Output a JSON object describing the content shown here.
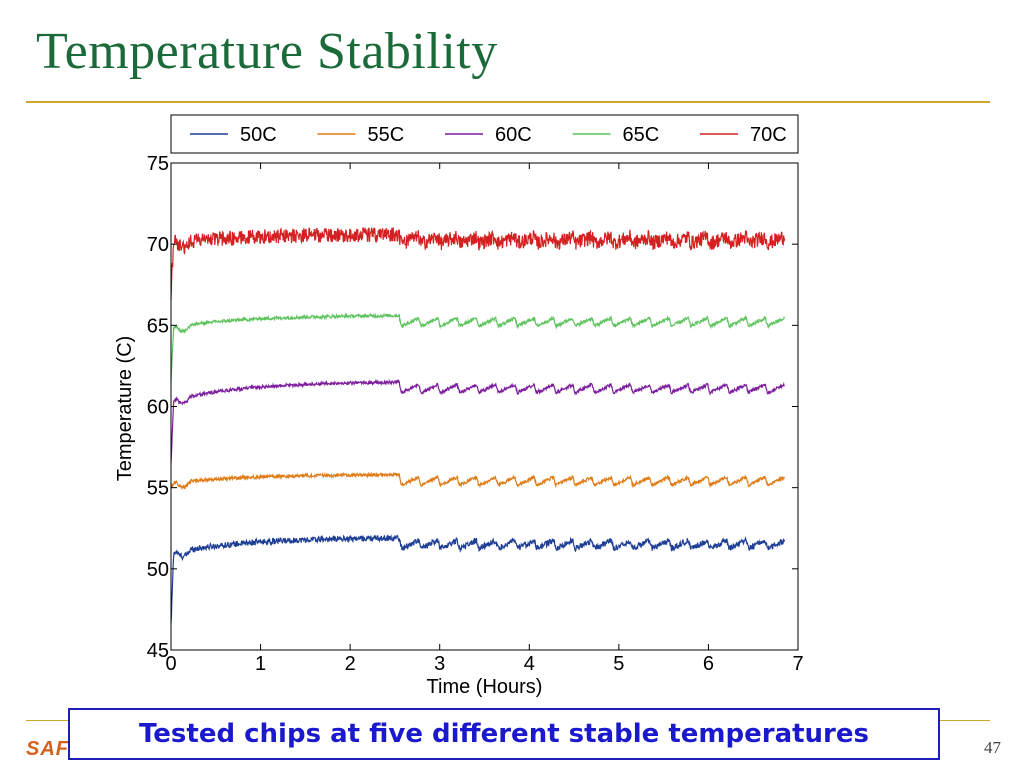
{
  "slide": {
    "title": "Temperature Stability",
    "callout": "Tested chips at five different stable temperatures",
    "page_number": "47",
    "logo_text": "SAF"
  },
  "colors": {
    "title": "#1b6b3a",
    "rule": "#cfa62c",
    "callout_border": "#1f1fb8",
    "callout_text": "#1a1acc",
    "logo": "#d6601f"
  },
  "chart_data": {
    "type": "line",
    "title": "",
    "xlabel": "Time (Hours)",
    "ylabel": "Temperature (C)",
    "xlim": [
      0,
      7
    ],
    "ylim": [
      45,
      75
    ],
    "xticks": [
      0,
      1,
      2,
      3,
      4,
      5,
      6,
      7
    ],
    "yticks": [
      45,
      50,
      55,
      60,
      65,
      70,
      75
    ],
    "grid": false,
    "legend_position": "top",
    "x_end": 6.85,
    "series": [
      {
        "name": "50C",
        "color": "#1f3f96",
        "start": 46.5,
        "initial": 51.0,
        "plateau": 51.9,
        "cycle_amplitude": 0.5,
        "noise": 0.18
      },
      {
        "name": "55C",
        "color": "#e07b17",
        "start": 55.0,
        "initial": 55.3,
        "plateau": 55.8,
        "cycle_amplitude": 0.5,
        "noise": 0.1
      },
      {
        "name": "60C",
        "color": "#7d1f9e",
        "start": 56.5,
        "initial": 60.4,
        "plateau": 61.5,
        "cycle_amplitude": 0.5,
        "noise": 0.1
      },
      {
        "name": "65C",
        "color": "#5fc45f",
        "start": 61.5,
        "initial": 64.9,
        "plateau": 65.6,
        "cycle_amplitude": 0.5,
        "noise": 0.1
      },
      {
        "name": "70C",
        "color": "#d42020",
        "start": 67.0,
        "initial": 70.1,
        "plateau": 70.6,
        "cycle_amplitude": 0.4,
        "noise": 0.45
      }
    ]
  }
}
